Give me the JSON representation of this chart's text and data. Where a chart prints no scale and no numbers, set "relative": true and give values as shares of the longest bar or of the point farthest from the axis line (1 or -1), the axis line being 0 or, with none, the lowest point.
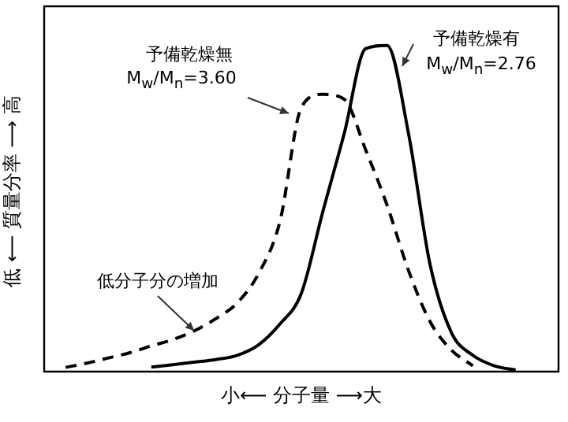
{
  "chart_data": {
    "type": "line",
    "relative": true,
    "xlabel": "小⟵ 分子量 ⟶大",
    "ylabel": "低 ⟵ 質量分率 ⟶ 高",
    "marker": "none",
    "legend": false,
    "categories": [
      null,
      null,
      null,
      null,
      null,
      null,
      null,
      null,
      null,
      null,
      null,
      null,
      null,
      null,
      null,
      null,
      null,
      null,
      null,
      null,
      null,
      null,
      null,
      null,
      null
    ],
    "series": [
      {
        "color": "#000000",
        "line_style": "dashed",
        "values": [
          null,
          0.013,
          0.026,
          0.042,
          0.058,
          0.079,
          0.098,
          0.125,
          0.162,
          0.21,
          0.3,
          0.46,
          0.81,
          0.85,
          0.835,
          0.68,
          0.51,
          0.31,
          0.154,
          0.066,
          0.018,
          null,
          null,
          null,
          null
        ]
      },
      {
        "color": "#000000",
        "line_style": "solid",
        "values": [
          null,
          null,
          null,
          null,
          null,
          0.014,
          0.021,
          0.029,
          0.037,
          0.05,
          0.082,
          0.146,
          0.24,
          0.49,
          0.73,
          0.99,
          1,
          0.73,
          0.33,
          0.12,
          0.05,
          0.018,
          0.005,
          null,
          null
        ]
      }
    ],
    "annotations": [
      "予備乾燥無",
      "M$_{w}$/M$_{n}$=3.60",
      "予備乾燥有",
      "M$_{w}$/M$_{n}$=2.76",
      "低分子分の増加"
    ]
  }
}
